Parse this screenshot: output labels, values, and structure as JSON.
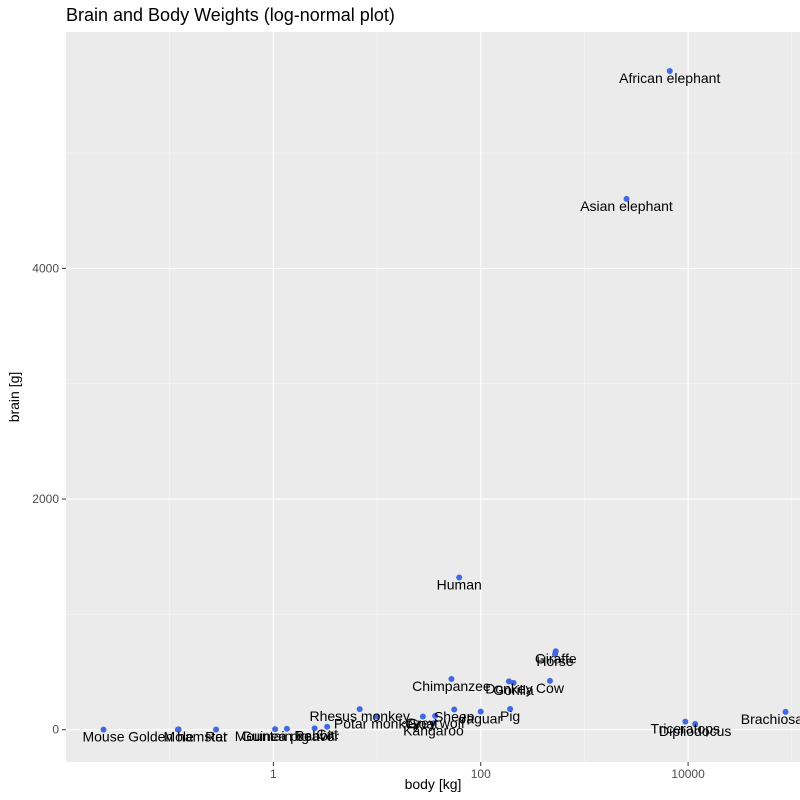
{
  "chart_data": {
    "type": "scatter",
    "title": "Brain and Body Weights (log-normal plot)",
    "xlabel": "body [kg]",
    "ylabel": "brain [g]",
    "x_scale": "log10",
    "xlim": [
      0.01,
      120000
    ],
    "ylim": [
      -280,
      6050
    ],
    "x_ticks": [
      1,
      100,
      10000
    ],
    "x_tick_labels": [
      "1",
      "100",
      "10000"
    ],
    "y_ticks": [
      0,
      2000,
      4000
    ],
    "y_tick_labels": [
      "0",
      "2000",
      "4000"
    ],
    "grid": true,
    "point_color": "#4169E1",
    "points": [
      {
        "label": "Mountain beaver",
        "x": 1.35,
        "y": 8.1
      },
      {
        "label": "Cow",
        "x": 465,
        "y": 423
      },
      {
        "label": "Grey wolf",
        "x": 36.33,
        "y": 119.5
      },
      {
        "label": "Goat",
        "x": 27.66,
        "y": 115
      },
      {
        "label": "Guinea pig",
        "x": 1.04,
        "y": 5.5
      },
      {
        "label": "Dipliodocus",
        "x": 11700,
        "y": 50
      },
      {
        "label": "Asian elephant",
        "x": 2547,
        "y": 4603
      },
      {
        "label": "Donkey",
        "x": 187.1,
        "y": 419
      },
      {
        "label": "Horse",
        "x": 521,
        "y": 655
      },
      {
        "label": "Potar monkey",
        "x": 10,
        "y": 115
      },
      {
        "label": "Cat",
        "x": 3.3,
        "y": 25.6
      },
      {
        "label": "Giraffe",
        "x": 529,
        "y": 680
      },
      {
        "label": "Gorilla",
        "x": 207,
        "y": 406
      },
      {
        "label": "Human",
        "x": 62,
        "y": 1320
      },
      {
        "label": "African elephant",
        "x": 6654,
        "y": 5712
      },
      {
        "label": "Triceratops",
        "x": 9400,
        "y": 70
      },
      {
        "label": "Rhesus monkey",
        "x": 6.8,
        "y": 179
      },
      {
        "label": "Kangaroo",
        "x": 35,
        "y": 56
      },
      {
        "label": "Golden hamster",
        "x": 0.12,
        "y": 1
      },
      {
        "label": "Mouse",
        "x": 0.023,
        "y": 0.4
      },
      {
        "label": "Rabbit",
        "x": 2.5,
        "y": 12.1
      },
      {
        "label": "Sheep",
        "x": 55.5,
        "y": 175
      },
      {
        "label": "Jaguar",
        "x": 100,
        "y": 157
      },
      {
        "label": "Chimpanzee",
        "x": 52.16,
        "y": 440
      },
      {
        "label": "Rat",
        "x": 0.28,
        "y": 1.9
      },
      {
        "label": "Brachiosaurus",
        "x": 87000,
        "y": 154.5
      },
      {
        "label": "Mole",
        "x": 0.122,
        "y": 3
      },
      {
        "label": "Pig",
        "x": 192,
        "y": 180
      }
    ]
  }
}
